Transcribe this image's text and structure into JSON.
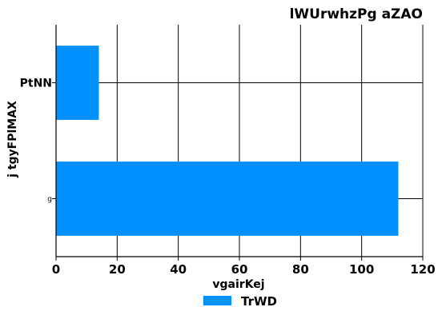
{
  "chart_data": {
    "type": "bar",
    "orientation": "horizontal",
    "title": "lWUrwhzPg aZAO",
    "xlabel": "vgairKej",
    "ylabel": "j tgyFPlMAX",
    "categories": [
      "PtNN",
      "g"
    ],
    "series": [
      {
        "name": "TrWD",
        "values": [
          14,
          112
        ],
        "color": "#0090ff"
      }
    ],
    "xlim": [
      0,
      120
    ],
    "xticks": [
      "0",
      "20",
      "40",
      "60",
      "80",
      "100",
      "120"
    ],
    "grid": true,
    "legend_position": "bottom-center"
  }
}
